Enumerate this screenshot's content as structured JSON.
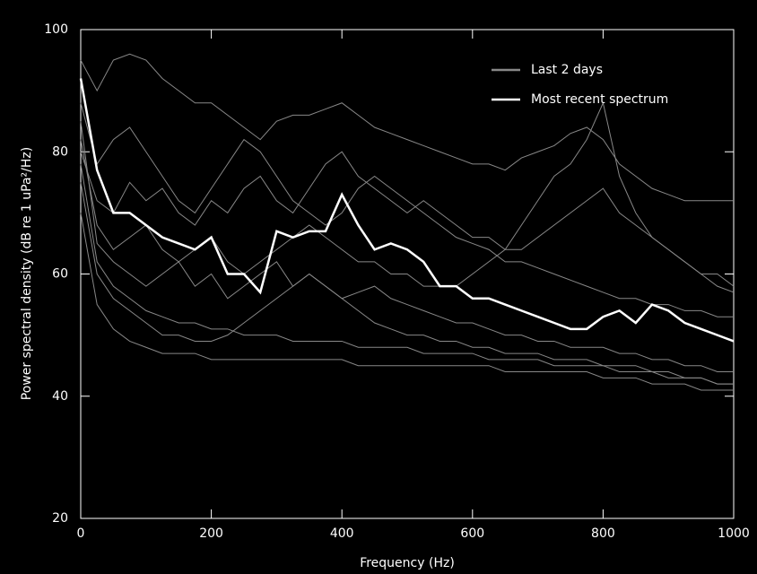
{
  "chart_data": {
    "type": "line",
    "xlabel": "Frequency (Hz)",
    "ylabel": "Power spectral density (dB re 1 uPa²/Hz)",
    "x": [
      0,
      25,
      50,
      75,
      100,
      125,
      150,
      175,
      200,
      225,
      250,
      275,
      300,
      325,
      350,
      375,
      400,
      425,
      450,
      475,
      500,
      525,
      550,
      575,
      600,
      625,
      650,
      675,
      700,
      725,
      750,
      775,
      800,
      825,
      850,
      875,
      900,
      925,
      950,
      975,
      1000
    ],
    "xlim": [
      0,
      1000
    ],
    "xticks": [
      0,
      200,
      400,
      600,
      800,
      1000
    ],
    "ylim": [
      20,
      100
    ],
    "yticks": [
      20,
      40,
      60,
      80,
      100
    ],
    "legend": "upper right",
    "series": [
      {
        "name": "Last 2 days",
        "color": "#888888",
        "values": [
          [
            70,
            55,
            51,
            49,
            48,
            47,
            47,
            47,
            46,
            46,
            46,
            46,
            46,
            46,
            46,
            46,
            46,
            45,
            45,
            45,
            45,
            45,
            45,
            45,
            45,
            45,
            44,
            44,
            44,
            44,
            44,
            44,
            43,
            43,
            43,
            42,
            42,
            42,
            41,
            41,
            41
          ],
          [
            95,
            90,
            95,
            96,
            95,
            92,
            90,
            88,
            88,
            86,
            84,
            82,
            85,
            86,
            86,
            87,
            88,
            86,
            84,
            83,
            82,
            81,
            80,
            79,
            78,
            78,
            77,
            79,
            80,
            81,
            83,
            84,
            82,
            78,
            76,
            74,
            73,
            72,
            72,
            72,
            72
          ],
          [
            85,
            65,
            62,
            60,
            58,
            60,
            62,
            58,
            60,
            56,
            58,
            60,
            62,
            58,
            60,
            58,
            56,
            57,
            58,
            56,
            55,
            54,
            53,
            52,
            52,
            51,
            50,
            50,
            49,
            49,
            48,
            48,
            48,
            47,
            47,
            46,
            46,
            45,
            45,
            44,
            44
          ],
          [
            80,
            72,
            70,
            75,
            72,
            74,
            70,
            68,
            72,
            70,
            74,
            76,
            72,
            70,
            74,
            78,
            80,
            76,
            74,
            72,
            70,
            72,
            70,
            68,
            66,
            66,
            64,
            64,
            66,
            68,
            70,
            72,
            74,
            70,
            68,
            66,
            64,
            62,
            60,
            60,
            58
          ],
          [
            75,
            60,
            56,
            54,
            52,
            50,
            50,
            49,
            49,
            50,
            52,
            54,
            56,
            58,
            60,
            58,
            56,
            54,
            52,
            51,
            50,
            50,
            49,
            49,
            48,
            48,
            47,
            47,
            47,
            46,
            46,
            46,
            45,
            45,
            45,
            44,
            44,
            43,
            43,
            42,
            42
          ],
          [
            88,
            78,
            82,
            84,
            80,
            76,
            72,
            70,
            74,
            78,
            82,
            80,
            76,
            72,
            70,
            68,
            70,
            74,
            76,
            74,
            72,
            70,
            68,
            66,
            65,
            64,
            62,
            62,
            61,
            60,
            59,
            58,
            57,
            56,
            56,
            55,
            55,
            54,
            54,
            53,
            53
          ],
          [
            78,
            62,
            58,
            56,
            54,
            53,
            52,
            52,
            51,
            51,
            50,
            50,
            50,
            49,
            49,
            49,
            49,
            48,
            48,
            48,
            48,
            47,
            47,
            47,
            47,
            46,
            46,
            46,
            46,
            45,
            45,
            45,
            45,
            44,
            44,
            44,
            43,
            43,
            43,
            42,
            42
          ],
          [
            82,
            68,
            64,
            66,
            68,
            64,
            62,
            64,
            66,
            62,
            60,
            62,
            64,
            66,
            68,
            66,
            64,
            62,
            62,
            60,
            60,
            58,
            58,
            58,
            60,
            62,
            64,
            68,
            72,
            76,
            78,
            82,
            88,
            76,
            70,
            66,
            64,
            62,
            60,
            58,
            57
          ]
        ]
      },
      {
        "name": "Most recent spectrum",
        "color": "#ffffff",
        "values": [
          92,
          77,
          70,
          70,
          68,
          66,
          65,
          64,
          66,
          60,
          60,
          57,
          67,
          66,
          67,
          67,
          73,
          68,
          64,
          65,
          64,
          62,
          58,
          58,
          56,
          56,
          55,
          54,
          53,
          52,
          51,
          51,
          53,
          54,
          52,
          55,
          54,
          52,
          51,
          50,
          49
        ]
      }
    ]
  }
}
